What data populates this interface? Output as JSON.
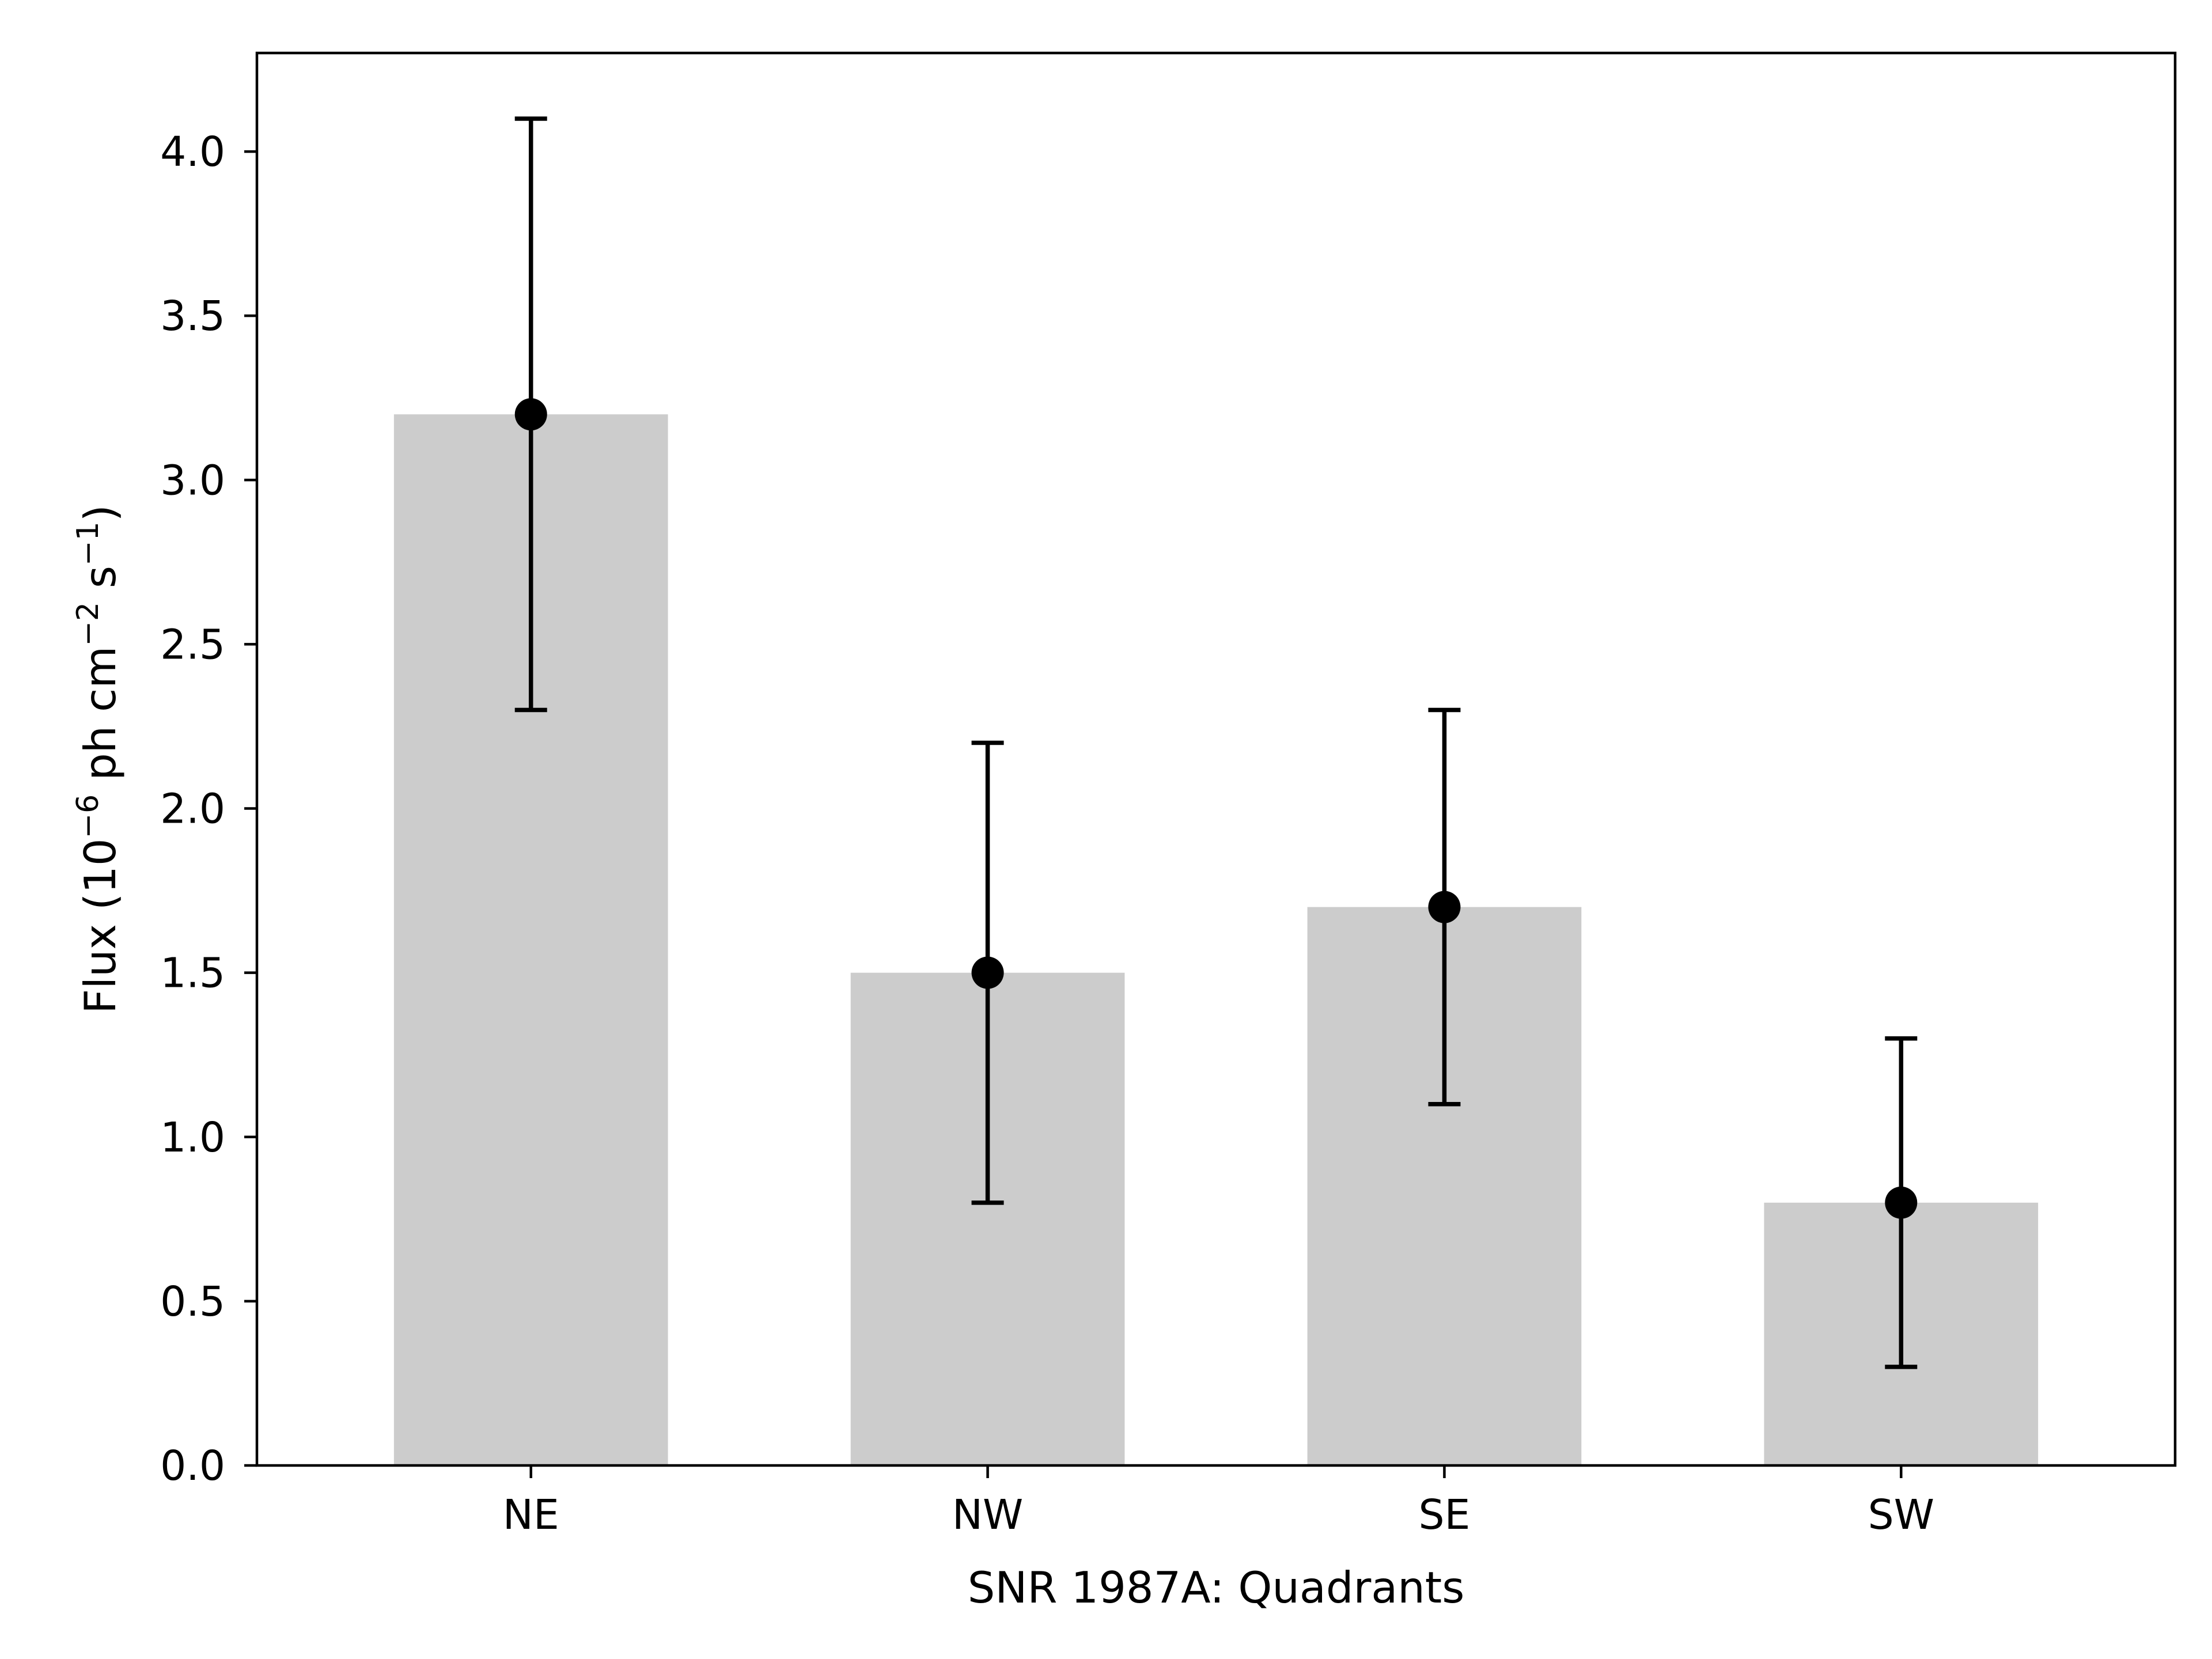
{
  "chart_data": {
    "type": "bar",
    "categories": [
      "NE",
      "NW",
      "SE",
      "SW"
    ],
    "values": [
      3.2,
      1.5,
      1.7,
      0.8
    ],
    "error_low": [
      2.3,
      0.8,
      1.1,
      0.3
    ],
    "error_high": [
      4.1,
      2.2,
      2.3,
      1.3
    ],
    "xlabel": "SNR 1987A: Quadrants",
    "ylabel": {
      "prefix": "Flux (10",
      "exp1": "−6",
      "mid1": " ph cm",
      "exp2": "−2",
      "mid2": " s",
      "exp3": "−1",
      "suffix": ")"
    },
    "ylim": [
      0,
      4.3
    ],
    "yticks": [
      "0.0",
      "0.5",
      "1.0",
      "1.5",
      "2.0",
      "2.5",
      "3.0",
      "3.5",
      "4.0"
    ],
    "grid": false,
    "legend": false,
    "colors": {
      "bar": "#cccccc",
      "marker": "#000000",
      "axes": "#000000"
    }
  }
}
